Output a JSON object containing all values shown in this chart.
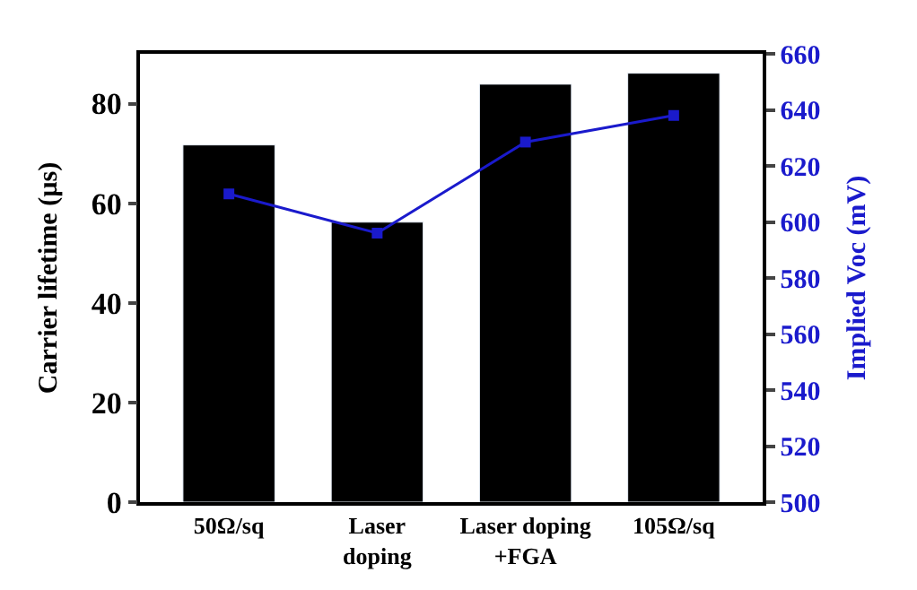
{
  "chart_data": {
    "type": "bar",
    "categories": [
      "50Ω/sq",
      "Laser\ndoping",
      "Laser doping\n+FGA",
      "105Ω/sq"
    ],
    "series": [
      {
        "color": "#000000",
        "values": [
          71.7,
          56.2,
          83.9,
          86.1
        ]
      },
      {
        "type": "line",
        "axis": "y2",
        "color": "#1a1acc",
        "marker": "square",
        "values": [
          610,
          596,
          628.5,
          638
        ]
      }
    ],
    "ylabel": "Carrier lifetime (µs)",
    "y2label": "Implied Voc (mV)",
    "ylim": [
      0,
      90
    ],
    "yticks": [
      0,
      20,
      40,
      60,
      80
    ],
    "y2lim": [
      500,
      660
    ],
    "y2ticks": [
      500,
      520,
      540,
      560,
      580,
      600,
      620,
      640,
      660
    ]
  }
}
